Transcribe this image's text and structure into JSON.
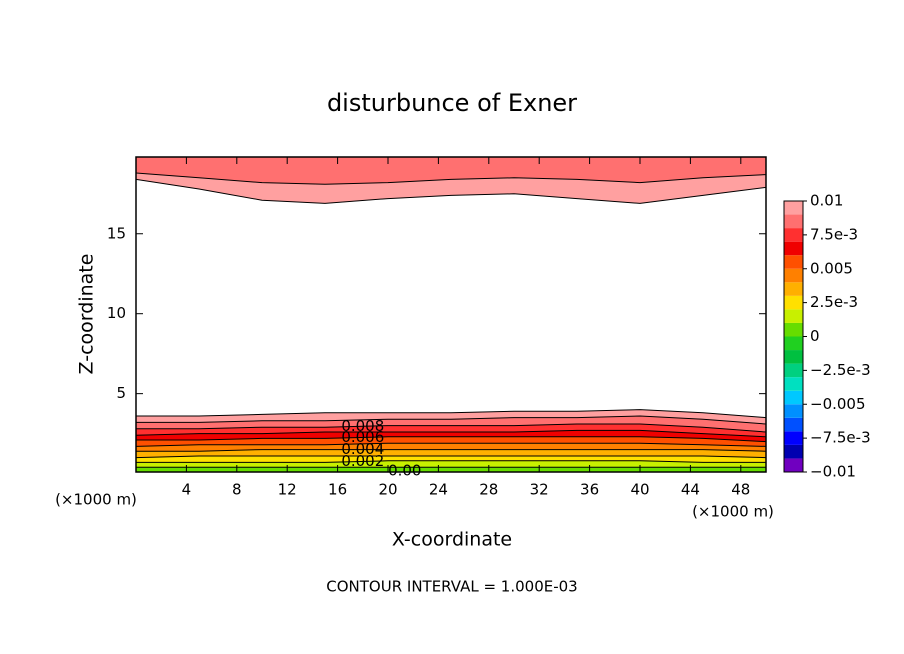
{
  "chart_data": {
    "type": "contour",
    "title": "disturbunce of Exner",
    "xlabel": "X-coordinate",
    "ylabel": "Z-coordinate",
    "x_unit": "(×1000 m)",
    "y_unit": "(×1000 m)",
    "note": "CONTOUR INTERVAL = 1.000E-03",
    "xlim": [
      0,
      50
    ],
    "ylim": [
      0.1,
      19.8
    ],
    "xticks": [
      4,
      8,
      12,
      16,
      20,
      24,
      28,
      32,
      36,
      40,
      44,
      48
    ],
    "yticks": [
      5,
      10,
      15
    ],
    "x": [
      0,
      5,
      10,
      15,
      20,
      25,
      30,
      35,
      40,
      45,
      50
    ],
    "contour_groups": [
      {
        "edge": "bottom",
        "contours": [
          {
            "level": 0.01,
            "z": [
              3.6,
              3.6,
              3.7,
              3.8,
              3.8,
              3.8,
              3.9,
              3.9,
              4.0,
              3.8,
              3.5
            ]
          },
          {
            "level": 0.009,
            "z": [
              3.2,
              3.2,
              3.3,
              3.3,
              3.4,
              3.4,
              3.5,
              3.5,
              3.6,
              3.4,
              3.1
            ]
          },
          {
            "level": 0.008,
            "z": [
              2.8,
              2.8,
              2.9,
              2.9,
              3.0,
              3.0,
              3.0,
              3.1,
              3.1,
              2.9,
              2.6
            ]
          },
          {
            "level": 0.007,
            "z": [
              2.4,
              2.5,
              2.5,
              2.6,
              2.6,
              2.6,
              2.6,
              2.7,
              2.7,
              2.5,
              2.3
            ]
          },
          {
            "level": 0.006,
            "z": [
              2.1,
              2.1,
              2.2,
              2.2,
              2.3,
              2.3,
              2.3,
              2.3,
              2.3,
              2.2,
              2.0
            ]
          },
          {
            "level": 0.005,
            "z": [
              1.7,
              1.8,
              1.8,
              1.8,
              1.9,
              1.9,
              1.9,
              1.9,
              1.9,
              1.8,
              1.7
            ]
          },
          {
            "level": 0.004,
            "z": [
              1.4,
              1.4,
              1.5,
              1.5,
              1.5,
              1.5,
              1.5,
              1.5,
              1.5,
              1.5,
              1.4
            ]
          },
          {
            "level": 0.003,
            "z": [
              1.0,
              1.1,
              1.1,
              1.1,
              1.1,
              1.1,
              1.1,
              1.1,
              1.1,
              1.1,
              1.0
            ]
          },
          {
            "level": 0.002,
            "z": [
              0.7,
              0.7,
              0.7,
              0.7,
              0.8,
              0.8,
              0.8,
              0.8,
              0.8,
              0.7,
              0.7
            ]
          },
          {
            "level": 0.001,
            "z": [
              0.4,
              0.4,
              0.4,
              0.4,
              0.4,
              0.4,
              0.4,
              0.4,
              0.4,
              0.4,
              0.4
            ]
          },
          {
            "level": 0,
            "z": [
              0.05,
              0.05,
              0.05,
              0.05,
              0.05,
              0.05,
              0.05,
              0.05,
              0.05,
              0.05,
              0.05
            ]
          }
        ]
      },
      {
        "edge": "top",
        "contours": [
          {
            "level": 0.01,
            "z": [
              18.4,
              17.8,
              17.1,
              16.9,
              17.2,
              17.4,
              17.5,
              17.2,
              16.9,
              17.4,
              17.9
            ]
          },
          {
            "level": 0.009,
            "z": [
              18.8,
              18.5,
              18.2,
              18.1,
              18.2,
              18.4,
              18.5,
              18.4,
              18.2,
              18.5,
              18.7
            ]
          }
        ]
      }
    ],
    "contour_labels": [
      {
        "value": 0.008,
        "label": "0.008"
      },
      {
        "value": 0.006,
        "label": "0.006"
      },
      {
        "value": 0.004,
        "label": "0.004"
      },
      {
        "value": 0.002,
        "label": "0.002"
      },
      {
        "value": 0,
        "label": "0.00"
      }
    ],
    "colorbar": {
      "lim": [
        -0.01,
        0.01
      ],
      "ticks": [
        0.01,
        {
          "value": 0.0075,
          "label": "7.5e-3"
        },
        0.005,
        {
          "value": 0.0025,
          "label": "2.5e-3"
        },
        0,
        {
          "value": -0.0025,
          "label": "−2.5e-3"
        },
        {
          "value": -0.005,
          "label": "−0.005"
        },
        {
          "value": -0.0075,
          "label": "−7.5e-3"
        },
        {
          "value": -0.01,
          "label": "−0.01"
        }
      ],
      "colors": [
        "#7000c0",
        "#0000b0",
        "#0000ff",
        "#0050ff",
        "#0090ff",
        "#00c8ff",
        "#00e0c0",
        "#00d080",
        "#00c040",
        "#20d020",
        "#66dd00",
        "#c8f000",
        "#ffe000",
        "#ffb000",
        "#ff8000",
        "#ff5000",
        "#f00000",
        "#ff3030",
        "#ff7070",
        "#ffa0a0"
      ]
    }
  }
}
